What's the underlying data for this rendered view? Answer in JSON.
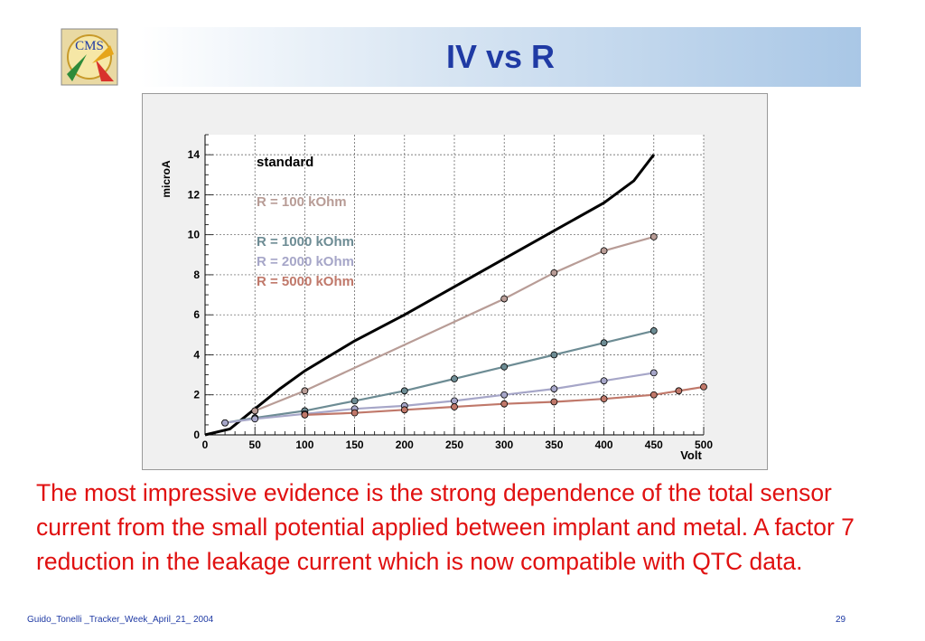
{
  "slide": {
    "title": "IV vs R",
    "logo_text": "CMS",
    "body_text": "The most impressive evidence is the strong dependence of the total sensor current from the small potential applied between implant and metal. A factor 7 reduction in the leakage current which is now compatible with QTC data.",
    "footer_left": "Guido_Tonelli _Tracker_Week_April_21_ 2004",
    "page_number": "29"
  },
  "chart_data": {
    "type": "line",
    "xlabel": "Volt",
    "ylabel": "microA",
    "xlim": [
      0,
      500
    ],
    "ylim": [
      0,
      15
    ],
    "x_ticks": [
      0,
      50,
      100,
      150,
      200,
      250,
      300,
      350,
      400,
      450,
      500
    ],
    "y_ticks": [
      0,
      2,
      4,
      6,
      8,
      10,
      12,
      14
    ],
    "grid": true,
    "legend_placement": "top-left",
    "series": [
      {
        "name": "standard",
        "color": "#000000",
        "markers": false,
        "x": [
          0,
          25,
          50,
          75,
          100,
          150,
          200,
          250,
          300,
          350,
          400,
          430,
          450
        ],
        "y": [
          0,
          0.3,
          1.3,
          2.3,
          3.2,
          4.7,
          6.0,
          7.4,
          8.8,
          10.2,
          11.6,
          12.7,
          14.0
        ]
      },
      {
        "name": "R = 100 kOhm",
        "color": "#b89c96",
        "markers": true,
        "x": [
          50,
          100,
          300,
          350,
          400,
          450
        ],
        "y": [
          1.2,
          2.2,
          6.8,
          8.1,
          9.2,
          9.9
        ]
      },
      {
        "name": "R = 1000 kOhm",
        "color": "#6d8c94",
        "markers": true,
        "x": [
          20,
          50,
          100,
          150,
          200,
          250,
          300,
          350,
          400,
          450
        ],
        "y": [
          0.6,
          0.85,
          1.2,
          1.7,
          2.2,
          2.8,
          3.4,
          4.0,
          4.6,
          5.2
        ]
      },
      {
        "name": "R = 2000 kOhm",
        "color": "#a6a6c8",
        "markers": true,
        "x": [
          20,
          50,
          100,
          150,
          200,
          250,
          300,
          350,
          400,
          450
        ],
        "y": [
          0.6,
          0.8,
          1.05,
          1.3,
          1.45,
          1.7,
          2.0,
          2.3,
          2.7,
          3.1
        ]
      },
      {
        "name": "R = 5000 kOhm",
        "color": "#c0786a",
        "markers": true,
        "x": [
          100,
          150,
          200,
          250,
          300,
          350,
          400,
          450,
          475,
          500
        ],
        "y": [
          1.0,
          1.1,
          1.25,
          1.4,
          1.55,
          1.65,
          1.8,
          2.0,
          2.2,
          2.4
        ]
      }
    ]
  }
}
